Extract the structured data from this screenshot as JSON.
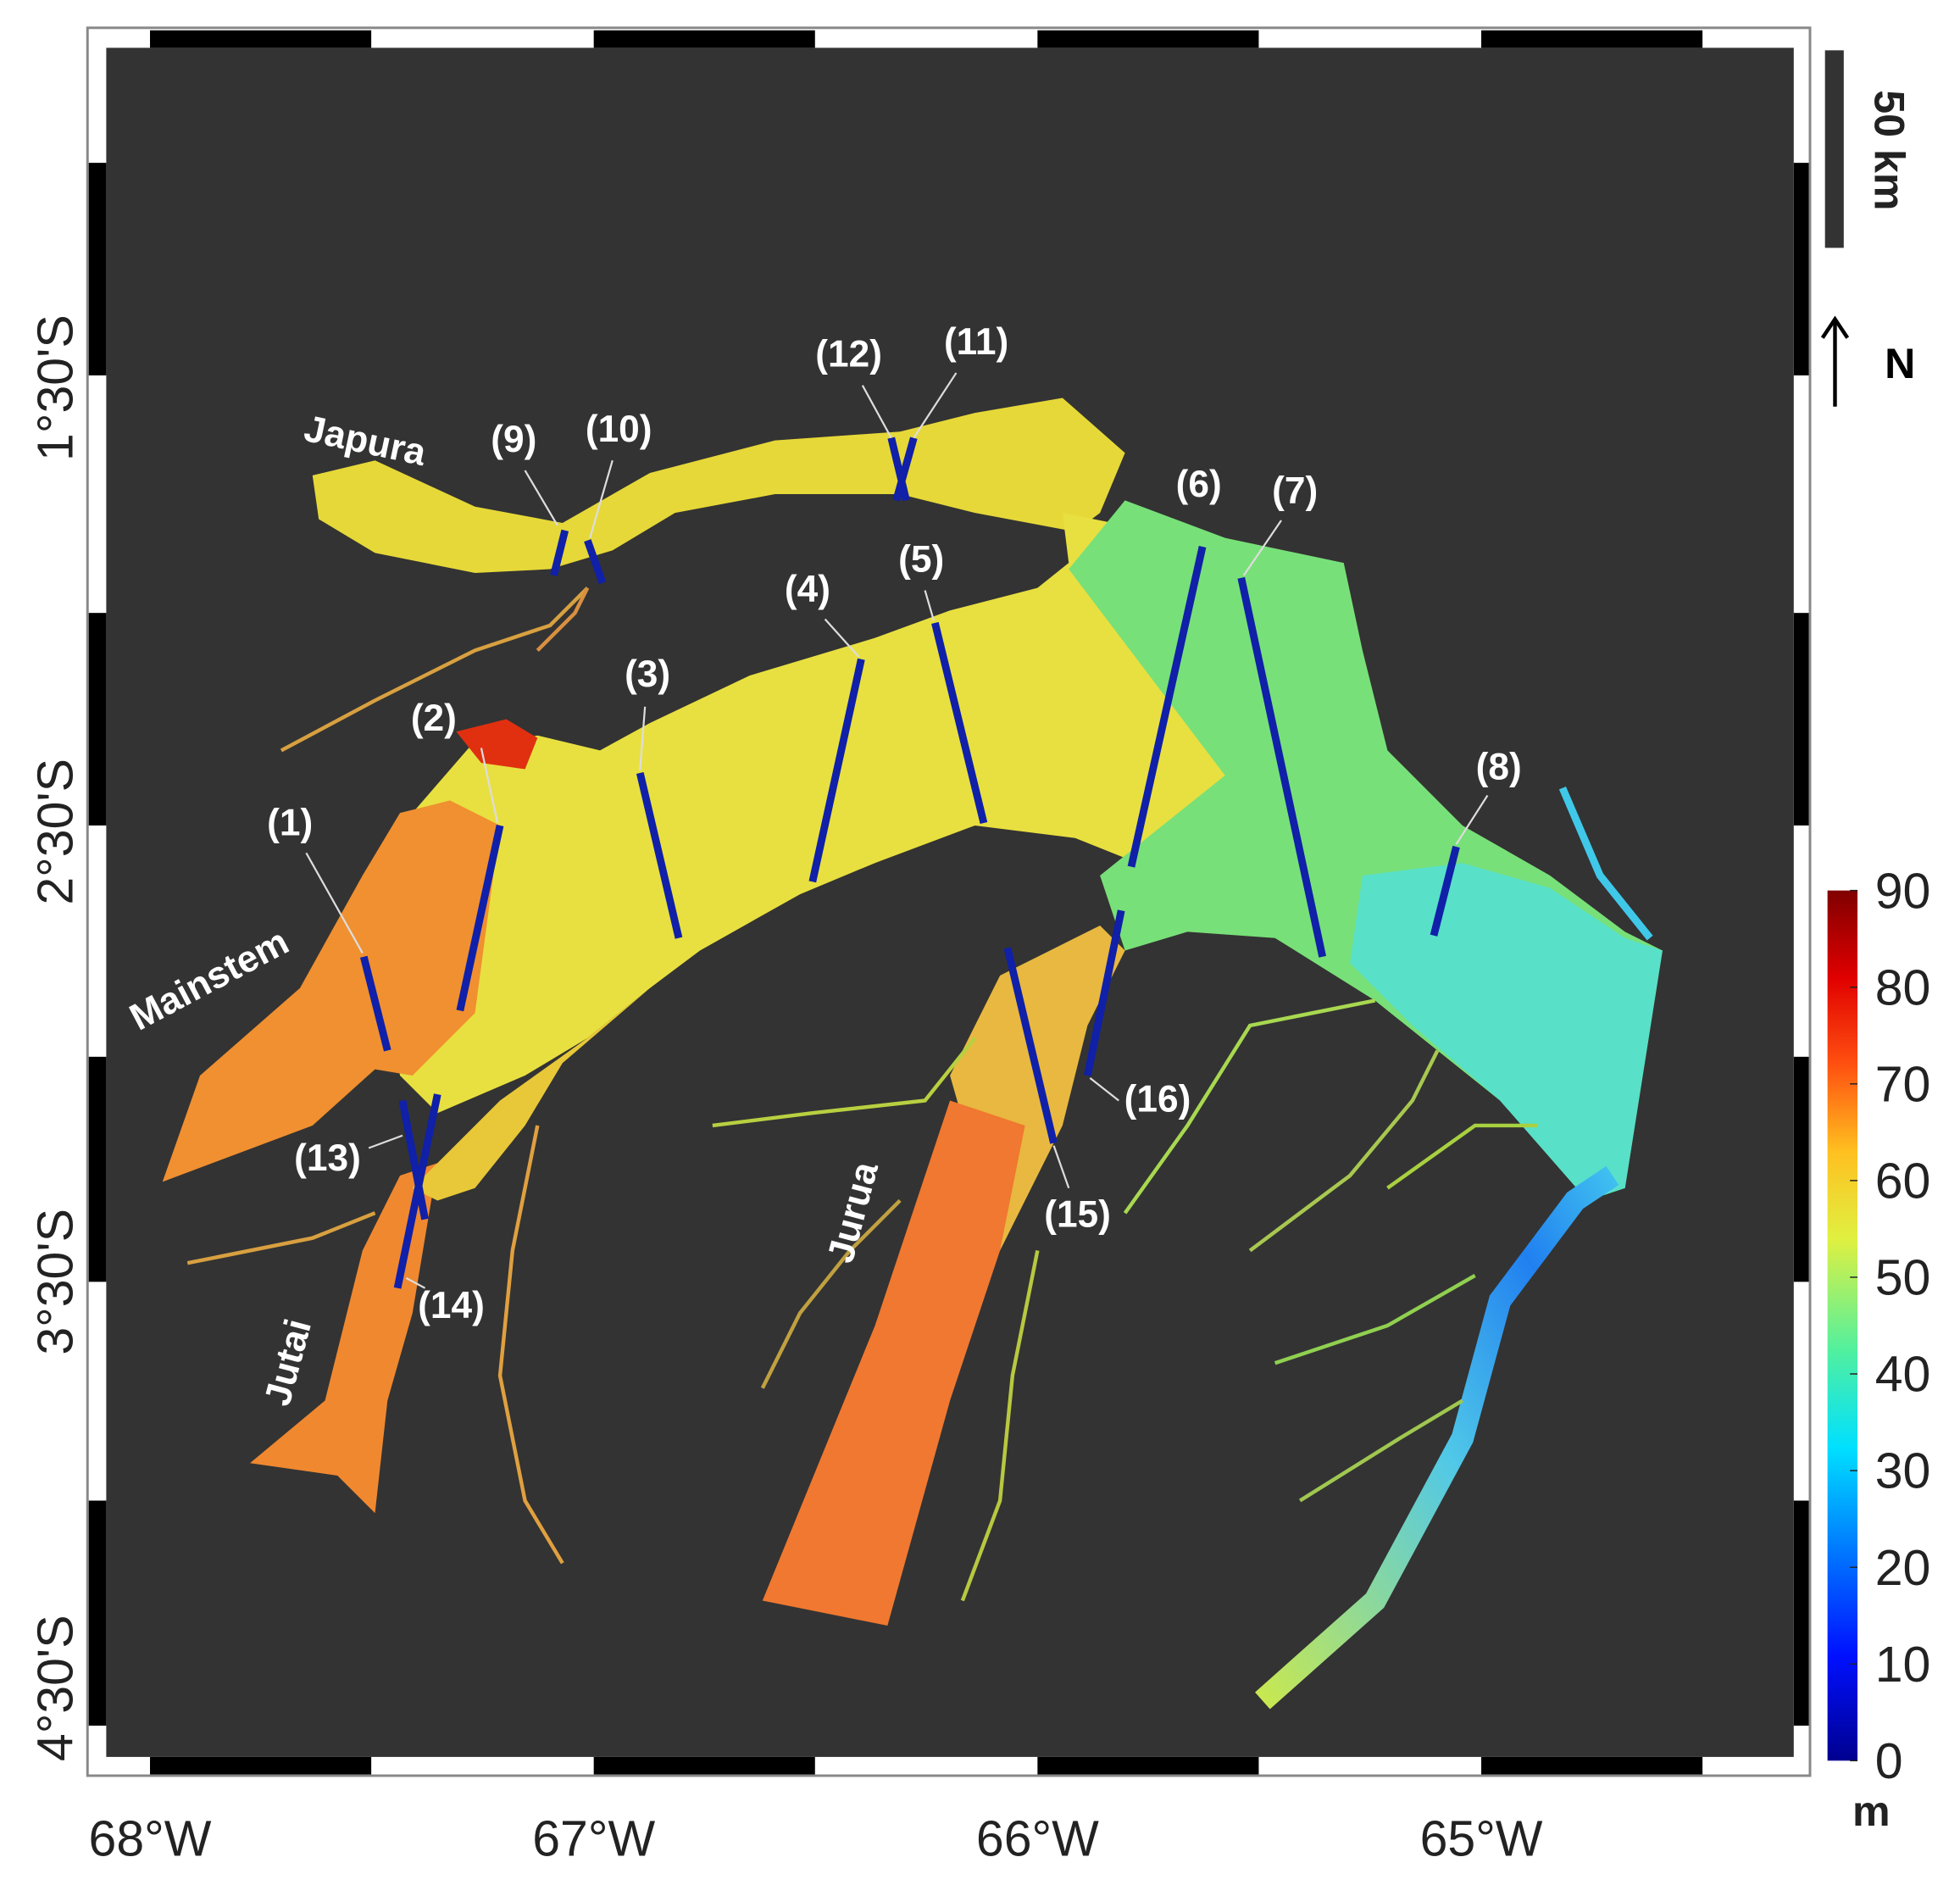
{
  "lon_labels": [
    "68°W",
    "67°W",
    "66°W",
    "65°W"
  ],
  "lat_labels": [
    "1°30'S",
    "2°30'S",
    "3°30'S",
    "4°30'S"
  ],
  "rivers": [
    "Japura",
    "Mainstem",
    "Jurua",
    "Jutai"
  ],
  "transects": [
    "(1)",
    "(2)",
    "(3)",
    "(4)",
    "(5)",
    "(6)",
    "(7)",
    "(8)",
    "(9)",
    "(10)",
    "(11)",
    "(12)",
    "(13)",
    "(14)",
    "(15)",
    "(16)"
  ],
  "scale_bar": "50 km",
  "north": "N",
  "colorbar": {
    "range": [
      0,
      90
    ],
    "ticks": [
      0,
      10,
      20,
      30,
      40,
      50,
      60,
      70,
      80,
      90
    ],
    "unit": "m"
  }
}
